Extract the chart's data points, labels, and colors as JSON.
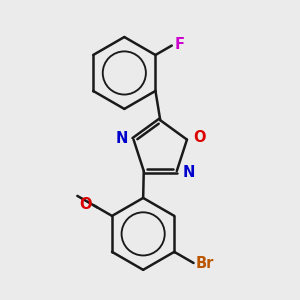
{
  "background_color": "#ebebeb",
  "bond_color": "#1a1a1a",
  "bond_width": 1.8,
  "atom_labels": {
    "F": {
      "color": "#cc00cc",
      "fontsize": 10.5,
      "fontweight": "bold"
    },
    "O": {
      "color": "#dd0000",
      "fontsize": 10.5,
      "fontweight": "bold"
    },
    "N": {
      "color": "#0000cc",
      "fontsize": 10.5,
      "fontweight": "bold"
    },
    "Br": {
      "color": "#bb5500",
      "fontsize": 10.5,
      "fontweight": "bold"
    },
    "O_methoxy": {
      "color": "#dd0000",
      "fontsize": 10.5,
      "fontweight": "bold"
    }
  },
  "figsize": [
    3.0,
    3.0
  ],
  "dpi": 100
}
